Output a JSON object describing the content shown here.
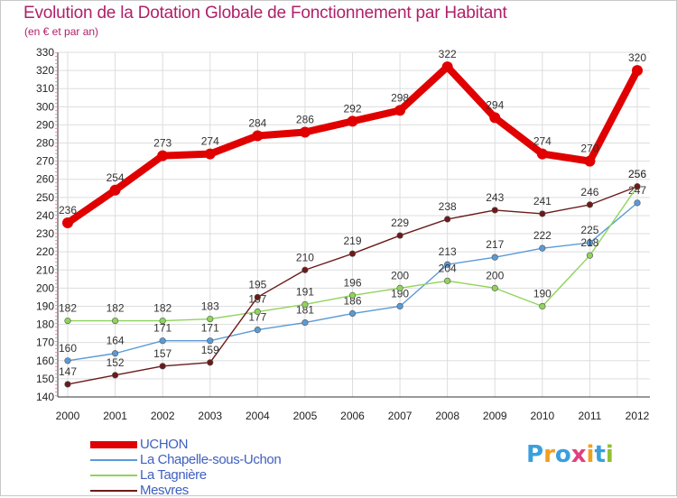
{
  "title": "Evolution de la Dotation Globale de Fonctionnement par Habitant",
  "subtitle": "(en € et par an)",
  "logo_text": "Proxiti",
  "chart_data": {
    "type": "line",
    "x": [
      "2000",
      "2001",
      "2002",
      "2003",
      "2004",
      "2005",
      "2006",
      "2007",
      "2008",
      "2009",
      "2010",
      "2011",
      "2012"
    ],
    "ylim": [
      140,
      330
    ],
    "yticks": [
      140,
      150,
      160,
      170,
      180,
      190,
      200,
      210,
      220,
      230,
      240,
      250,
      260,
      270,
      280,
      290,
      300,
      310,
      320,
      330
    ],
    "grid": true,
    "legend_position": "bottom-left",
    "series": [
      {
        "name": "UCHON",
        "color": "#e00000",
        "values": [
          236,
          254,
          273,
          274,
          284,
          286,
          292,
          298,
          322,
          294,
          274,
          270,
          320
        ]
      },
      {
        "name": "La Chapelle-sous-Uchon",
        "color": "#5a9ad6",
        "values": [
          160,
          164,
          171,
          171,
          177,
          181,
          186,
          190,
          213,
          217,
          222,
          225,
          247
        ]
      },
      {
        "name": "La Tagnière",
        "color": "#8fd45a",
        "values": [
          182,
          182,
          182,
          183,
          187,
          191,
          196,
          200,
          204,
          200,
          190,
          218,
          256
        ]
      },
      {
        "name": "Mesvres",
        "color": "#6b1a1a",
        "values": [
          147,
          152,
          157,
          159,
          195,
          210,
          219,
          229,
          238,
          243,
          241,
          246,
          256
        ]
      }
    ]
  }
}
